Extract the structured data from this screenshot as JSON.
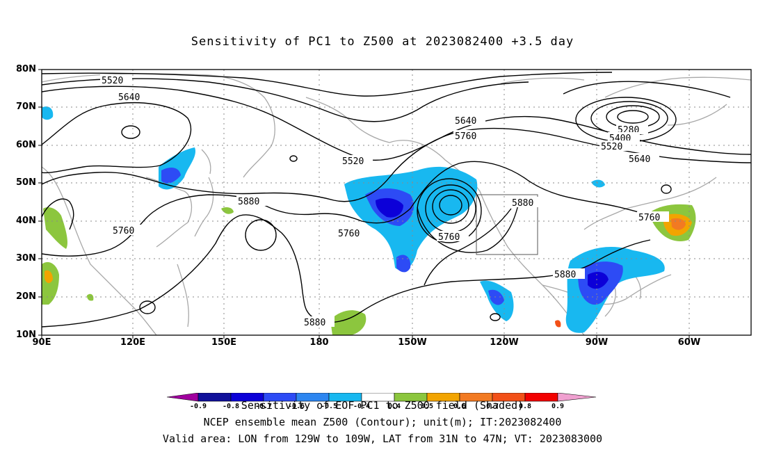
{
  "title": "Sensitivity of PC1 to Z500 at 2023082400 +3.5 day",
  "axes": {
    "lat_labels": [
      "80N",
      "70N",
      "60N",
      "50N",
      "40N",
      "30N",
      "20N",
      "10N"
    ],
    "lon_labels": [
      "90E",
      "120E",
      "150E",
      "180",
      "150W",
      "120W",
      "90W",
      "60W"
    ]
  },
  "contour_labels": [
    "5520",
    "5640",
    "5520",
    "5640",
    "5760",
    "5280",
    "5400",
    "5520",
    "5640",
    "5880",
    "5760",
    "5760",
    "5760",
    "5880",
    "5760",
    "5880",
    "5880"
  ],
  "colorbar": {
    "ticks": [
      "-0.9",
      "-0.8",
      "-0.7",
      "-0.6",
      "-0.5",
      "-0.4",
      "0.4",
      "0.5",
      "0.6",
      "0.7",
      "0.8",
      "0.9"
    ],
    "colors": [
      "#a0009e",
      "#10109a",
      "#0c00d8",
      "#2d4bf5",
      "#2d86f0",
      "#18b8f0",
      "#00d8f0",
      "#ffffff",
      "#8cc63e",
      "#f2a400",
      "#f27a22",
      "#f25018",
      "#f20000",
      "#f0a0d0"
    ]
  },
  "captions": {
    "line1": "Sensitivity of EOF PC1 to Z500 field (Shaded)",
    "line2": "NCEP ensemble mean Z500 (Contour); unit(m); IT:2023082400",
    "line3": "Valid area: LON from 129W to 109W, LAT from 31N to 47N; VT: 2023083000"
  }
}
